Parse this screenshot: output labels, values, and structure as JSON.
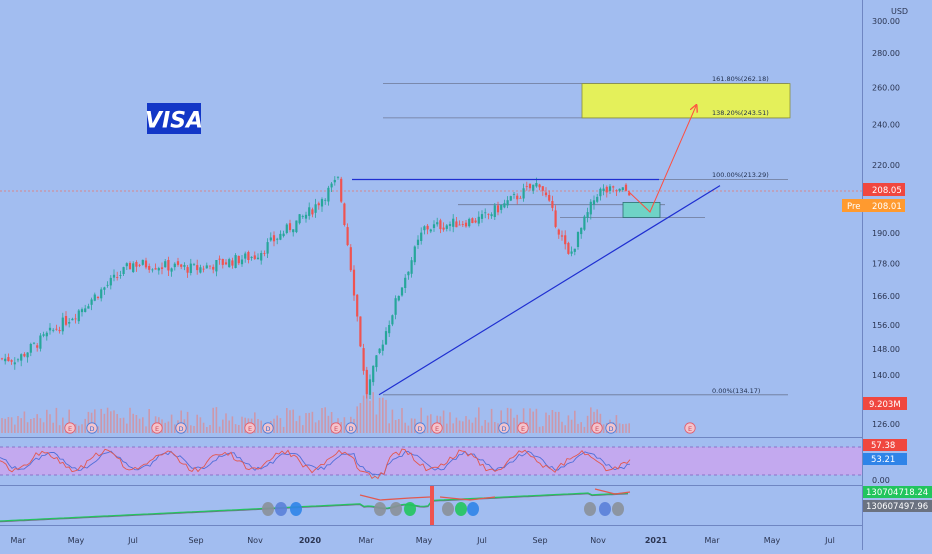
{
  "colors": {
    "background": "#a2bdf0",
    "bull": "#26a69a",
    "bear": "#ef5350",
    "wick_bull": "#1a7a6e",
    "trendline": "#1f2fd1",
    "price_line": "#e8756c",
    "fib_line": "#6d7896",
    "target_box": "#e4f05a",
    "entry_box": "#6fd3c6",
    "projection": "#ff4d40",
    "volume": "#d98c94",
    "osc_band": "#c9a6ee",
    "logo_bg": "#1337c7",
    "price_tag": "#f0473f",
    "pre_tag": "#ff9a2f",
    "vol_tag": "#f0473f",
    "rsi_tag_1": "#f0473f",
    "rsi_tag_2": "#2f84e8",
    "obv_tag_1": "#22c55e",
    "obv_tag_2": "#6b7280"
  },
  "logo": {
    "text": "VISA"
  },
  "axis": {
    "currency": "USD",
    "price_ticks": [
      "300.00",
      "280.00",
      "260.00",
      "240.00",
      "220.00",
      "190.00",
      "178.00",
      "166.00",
      "156.00",
      "148.00",
      "140.00",
      "126.00"
    ],
    "osc_ticks": [
      "0.00"
    ],
    "months": [
      "Mar",
      "May",
      "Jul",
      "Sep",
      "Nov",
      "2020",
      "Mar",
      "May",
      "Jul",
      "Sep",
      "Nov",
      "2021",
      "Mar",
      "May",
      "Jul"
    ]
  },
  "tags": {
    "last_price": "208.05",
    "pre_label": "Pre",
    "pre_price": "208.01",
    "volume": "9.203M",
    "rsi_1": "57.38",
    "rsi_2": "53.21",
    "obv_1": "130704718.24",
    "obv_2": "130607497.96"
  },
  "fib_labels": {
    "f1618": "161.80%(262.18)",
    "f1382": "138.20%(243.51)",
    "f1000": "100.00%(213.29)",
    "f0": "0.00%(134.17)"
  },
  "earnings_marker": "E",
  "dividend_marker": "D",
  "chart_data": {
    "type": "candlestick",
    "symbol": "VISA",
    "currency": "USD",
    "y_scale": "log",
    "price_axis_range": [
      122,
      305
    ],
    "oscillator_axis_ticks": [
      0
    ],
    "x_months": [
      "Mar",
      "May",
      "Jul",
      "Sep",
      "Nov",
      "2020",
      "Mar",
      "May",
      "Jul",
      "Sep",
      "Nov",
      "2021",
      "Mar",
      "May",
      "Jul"
    ],
    "approx_close_path": [
      {
        "t": "2019-03",
        "price": 145
      },
      {
        "t": "2019-05",
        "price": 160
      },
      {
        "t": "2019-07",
        "price": 178
      },
      {
        "t": "2019-09",
        "price": 176
      },
      {
        "t": "2019-11",
        "price": 181
      },
      {
        "t": "2020-01",
        "price": 199
      },
      {
        "t": "2020-02",
        "price": 213
      },
      {
        "t": "2020-03",
        "price": 134
      },
      {
        "t": "2020-05",
        "price": 192
      },
      {
        "t": "2020-07",
        "price": 196
      },
      {
        "t": "2020-09",
        "price": 212
      },
      {
        "t": "2020-10",
        "price": 180
      },
      {
        "t": "2020-11",
        "price": 208
      }
    ],
    "last_price": 208.05,
    "premarket_price": 208.01,
    "fibonacci_levels": [
      {
        "ratio": "0.00%",
        "price": 134.17
      },
      {
        "ratio": "100.00%",
        "price": 213.29
      },
      {
        "ratio": "138.20%",
        "price": 243.51
      },
      {
        "ratio": "161.80%",
        "price": 262.18
      }
    ],
    "volume_last": "9.203M",
    "oscillator_values": [
      57.38,
      53.21
    ],
    "cumulative_values": [
      130704718.24,
      130607497.96
    ]
  }
}
